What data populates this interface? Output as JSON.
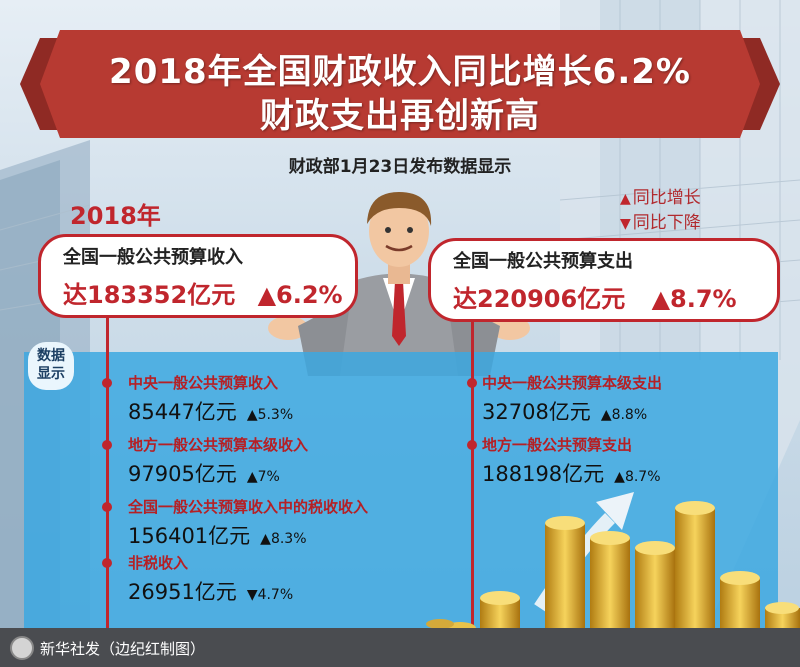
{
  "header": {
    "title_line1": "2018年全国财政收入同比增长6.2%",
    "title_line2": "财政支出再创新高",
    "subtitle": "财政部1月23日发布数据显示"
  },
  "year": "2018年",
  "legend": {
    "up": "同比增长",
    "down": "同比下降"
  },
  "revenue_card": {
    "title": "全国一般公共预算收入",
    "value": "达183352亿元",
    "change": "▲6.2%"
  },
  "expenditure_card": {
    "title": "全国一般公共预算支出",
    "value": "达220906亿元",
    "change": "▲8.7%"
  },
  "data_badge": {
    "line1": "数据",
    "line2": "显示"
  },
  "left_items": [
    {
      "label": "中央一般公共预算收入",
      "value": "85447亿元",
      "change": "▲5.3%"
    },
    {
      "label": "地方一般公共预算本级收入",
      "value": "97905亿元",
      "change": "▲7%"
    },
    {
      "label": "全国一般公共预算收入中的税收收入",
      "value": "156401亿元",
      "change": "▲8.3%"
    },
    {
      "label": "非税收入",
      "value": "26951亿元",
      "change": "▼4.7%"
    }
  ],
  "right_items": [
    {
      "label": "中央一般公共预算本级支出",
      "value": "32708亿元",
      "change": "▲8.8%"
    },
    {
      "label": "地方一般公共预算支出",
      "value": "188198亿元",
      "change": "▲8.7%"
    }
  ],
  "footer": {
    "credit": "新华社发（边纪红制图）"
  },
  "colors": {
    "ribbon": "#b73a32",
    "accent_red": "#c0262d",
    "panel_blue": "#3ca8e1",
    "footer": "#4a4c50"
  }
}
